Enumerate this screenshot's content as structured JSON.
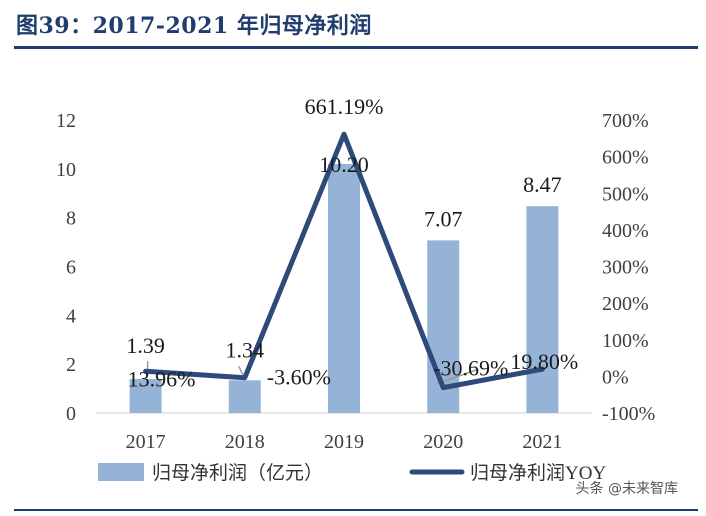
{
  "header": {
    "title": "图39：2017-2021 年归母净利润"
  },
  "watermark": {
    "text": "头条 @未来智库"
  },
  "colors": {
    "bar": "#95b3d7",
    "line": "#2e4a7a",
    "title": "#1f3d6e",
    "axis_text": "#404040",
    "leader": "#9a9a9a"
  },
  "chart_data": {
    "type": "bar",
    "title": "",
    "categories": [
      "2017",
      "2018",
      "2019",
      "2020",
      "2021"
    ],
    "left_axis": {
      "ylim": [
        0,
        12
      ],
      "ticks": [
        "0",
        "2",
        "4",
        "6",
        "8",
        "10",
        "12"
      ]
    },
    "right_axis": {
      "ylim": [
        -100,
        700
      ],
      "ticks": [
        "-100%",
        "0%",
        "100%",
        "200%",
        "300%",
        "400%",
        "500%",
        "600%",
        "700%"
      ]
    },
    "series": [
      {
        "name": "归母净利润（亿元）",
        "type": "bar",
        "axis": "left",
        "values": [
          1.39,
          1.34,
          10.2,
          7.07,
          8.47
        ],
        "labels": [
          "1.39",
          "1.34",
          "10.20",
          "7.07",
          "8.47"
        ]
      },
      {
        "name": "归母净利润YOY",
        "type": "line",
        "axis": "right",
        "values": [
          13.96,
          -3.6,
          661.19,
          -30.69,
          19.8
        ],
        "labels": [
          "13.96%",
          "-3.60%",
          "661.19%",
          "-30.69%",
          "19.80%"
        ]
      }
    ],
    "legend": "bottom",
    "grid": false
  }
}
